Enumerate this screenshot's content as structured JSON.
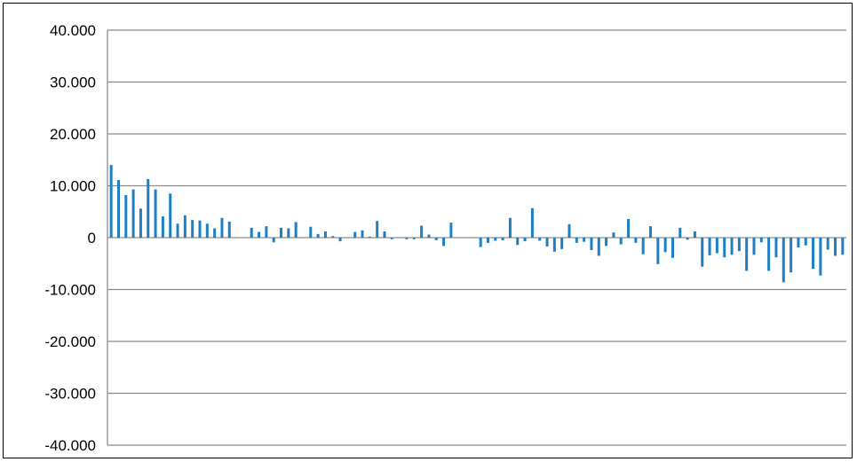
{
  "chart_data": {
    "type": "bar",
    "title": "",
    "xlabel": "",
    "ylabel": "",
    "ylim": [
      -40000,
      40000
    ],
    "grid": true,
    "legend": "none",
    "y_ticks": [
      {
        "value": 40000,
        "label": "40.000"
      },
      {
        "value": 30000,
        "label": "30.000"
      },
      {
        "value": 20000,
        "label": "20.000"
      },
      {
        "value": 10000,
        "label": "10.000"
      },
      {
        "value": 0,
        "label": "0"
      },
      {
        "value": -10000,
        "label": "-10.000"
      },
      {
        "value": -20000,
        "label": "-20.000"
      },
      {
        "value": -30000,
        "label": "-30.000"
      },
      {
        "value": -40000,
        "label": "-40.000"
      }
    ],
    "series": [
      {
        "color": "#1f7fc4",
        "values": [
          14000,
          11100,
          8200,
          9300,
          5600,
          11300,
          9300,
          4100,
          8500,
          2700,
          4300,
          3400,
          3300,
          2700,
          1800,
          3800,
          3100,
          0,
          0,
          1900,
          1100,
          2200,
          -900,
          1900,
          1800,
          3000,
          0,
          2100,
          700,
          1200,
          300,
          -700,
          0,
          1100,
          1400,
          200,
          3200,
          1200,
          -300,
          0,
          -300,
          -300,
          2300,
          600,
          -500,
          -1600,
          2900,
          0,
          0,
          0,
          -1800,
          -1000,
          -600,
          -500,
          3800,
          -1400,
          -700,
          5700,
          -600,
          -1700,
          -2700,
          -2200,
          2600,
          -1000,
          -800,
          -2400,
          -3500,
          -1600,
          1000,
          -1300,
          3600,
          -1000,
          -3200,
          2200,
          -5100,
          -2800,
          -3900,
          1900,
          -400,
          1200,
          -5600,
          -3400,
          -3000,
          -3800,
          -3300,
          -2600,
          -6400,
          -3300,
          -900,
          -6400,
          -3800,
          -8600,
          -6700,
          -1900,
          -1500,
          -6000,
          -7300,
          -2300,
          -3500,
          -3300
        ]
      }
    ]
  }
}
